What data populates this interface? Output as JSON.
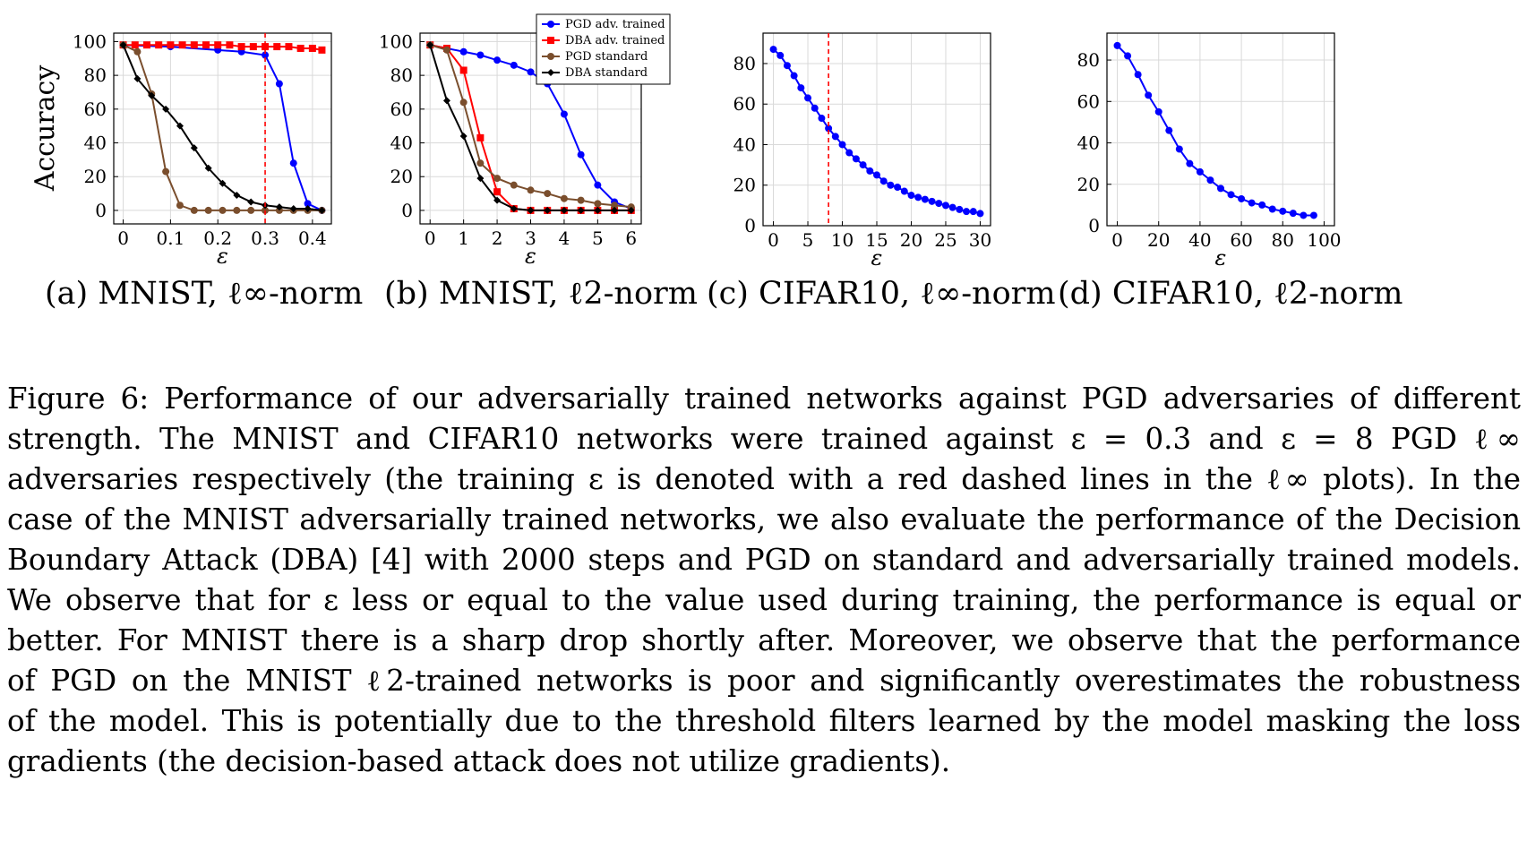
{
  "figure": {
    "panels": [
      {
        "caption": "(a) MNIST, ℓ∞-norm"
      },
      {
        "caption": "(b) MNIST, ℓ2-norm"
      },
      {
        "caption": "(c) CIFAR10, ℓ∞-norm"
      },
      {
        "caption": "(d) CIFAR10, ℓ2-norm"
      }
    ],
    "caption_lines": [
      "Figure 6: Performance of our adversarially trained networks against PGD adversaries of different",
      "strength. The MNIST and CIFAR10 networks were trained against ε = 0.3 and ε = 8 PGD ℓ∞",
      "adversaries respectively (the training ε is denoted with a red dashed lines in the ℓ∞ plots). In the",
      "case of the MNIST adversarially trained networks, we also evaluate the performance of the Decision",
      "Boundary Attack (DBA) [4] with 2000 steps and PGD on standard and adversarially trained models.",
      "We observe that for ε less or equal to the value used during training, the performance is equal or",
      "better. For MNIST there is a sharp drop shortly after. Moreover, we observe that the performance",
      "of PGD on the MNIST ℓ2-trained networks is poor and significantly overestimates the robustness",
      "of the model. This is potentially due to the threshold filters learned by the model masking the loss",
      "gradients (the decision-based attack does not utilize gradients)."
    ]
  },
  "colors": {
    "pgd_adv": "#0000ff",
    "dba_adv": "#ff0000",
    "pgd_std": "#7a4e2d",
    "dba_std": "#000000",
    "marker_line": "#ff0000"
  },
  "chart_data": [
    {
      "type": "line",
      "title": "(a) MNIST, ℓ∞-norm",
      "xlabel": "ε",
      "ylabel": "Accuracy",
      "xlim": [
        -0.02,
        0.44
      ],
      "ylim": [
        -8,
        105
      ],
      "xticks": [
        0,
        0.1,
        0.2,
        0.3,
        0.4
      ],
      "xtick_labels": [
        "0",
        "0.1",
        "0.2",
        "0.3",
        "0.4"
      ],
      "yticks": [
        0,
        20,
        40,
        60,
        80,
        100
      ],
      "ytick_labels": [
        "0",
        "20",
        "40",
        "60",
        "80",
        "100"
      ],
      "vline": 0.3,
      "series": [
        {
          "name": "PGD adv. trained",
          "color": "pgd_adv",
          "marker": "circle",
          "x": [
            0,
            0.1,
            0.2,
            0.25,
            0.3,
            0.33,
            0.36,
            0.39,
            0.42
          ],
          "y": [
            98,
            97,
            95,
            94,
            92,
            75,
            28,
            4,
            0
          ]
        },
        {
          "name": "DBA adv. trained",
          "color": "dba_adv",
          "marker": "square",
          "x": [
            0,
            0.025,
            0.05,
            0.075,
            0.1,
            0.125,
            0.15,
            0.175,
            0.2,
            0.225,
            0.25,
            0.275,
            0.3,
            0.325,
            0.35,
            0.375,
            0.4,
            0.42
          ],
          "y": [
            98,
            98,
            98,
            98,
            98,
            98,
            98,
            98,
            98,
            98,
            97,
            97,
            97,
            97,
            97,
            96,
            96,
            95
          ]
        },
        {
          "name": "PGD standard",
          "color": "pgd_std",
          "marker": "circle",
          "x": [
            0,
            0.03,
            0.06,
            0.09,
            0.12,
            0.15,
            0.18,
            0.21,
            0.24,
            0.27,
            0.3,
            0.33,
            0.36,
            0.39,
            0.42
          ],
          "y": [
            98,
            94,
            69,
            23,
            3,
            0,
            0,
            0,
            0,
            0,
            0,
            0,
            0,
            0,
            0
          ]
        },
        {
          "name": "DBA standard",
          "color": "dba_std",
          "marker": "diamond",
          "x": [
            0,
            0.03,
            0.06,
            0.09,
            0.12,
            0.15,
            0.18,
            0.21,
            0.24,
            0.27,
            0.3,
            0.33,
            0.36,
            0.39,
            0.42
          ],
          "y": [
            98,
            78,
            68,
            60,
            50,
            37,
            25,
            16,
            9,
            5,
            3,
            2,
            1,
            1,
            0
          ]
        }
      ]
    },
    {
      "type": "line",
      "title": "(b) MNIST, ℓ2-norm",
      "xlabel": "ε",
      "ylabel": "",
      "xlim": [
        -0.3,
        6.3
      ],
      "ylim": [
        -8,
        105
      ],
      "xticks": [
        0,
        1,
        2,
        3,
        4,
        5,
        6
      ],
      "xtick_labels": [
        "0",
        "1",
        "2",
        "3",
        "4",
        "5",
        "6"
      ],
      "yticks": [
        0,
        20,
        40,
        60,
        80,
        100
      ],
      "ytick_labels": [
        "0",
        "20",
        "40",
        "60",
        "80",
        "100"
      ],
      "legend": "top-right",
      "series": [
        {
          "name": "PGD adv. trained",
          "color": "pgd_adv",
          "marker": "circle",
          "x": [
            0,
            0.5,
            1,
            1.5,
            2,
            2.5,
            3,
            3.5,
            4,
            4.5,
            5,
            5.5,
            6
          ],
          "y": [
            98,
            96,
            94,
            92,
            89,
            86,
            82,
            75,
            57,
            33,
            15,
            5,
            1
          ]
        },
        {
          "name": "DBA adv. trained",
          "color": "dba_adv",
          "marker": "square",
          "x": [
            0,
            0.5,
            1,
            1.5,
            2,
            2.5,
            3,
            3.5,
            4,
            4.5,
            5,
            5.5,
            6
          ],
          "y": [
            98,
            96,
            83,
            43,
            11,
            1,
            0,
            0,
            0,
            0,
            0,
            0,
            0
          ]
        },
        {
          "name": "PGD standard",
          "color": "pgd_std",
          "marker": "circle",
          "x": [
            0,
            0.5,
            1,
            1.5,
            2,
            2.5,
            3,
            3.5,
            4,
            4.5,
            5,
            5.5,
            6
          ],
          "y": [
            98,
            95,
            64,
            28,
            19,
            15,
            12,
            10,
            7,
            6,
            4,
            3,
            2
          ]
        },
        {
          "name": "DBA standard",
          "color": "dba_std",
          "marker": "diamond",
          "x": [
            0,
            0.5,
            1,
            1.5,
            2,
            2.5,
            3,
            3.5,
            4,
            4.5,
            5,
            5.5,
            6
          ],
          "y": [
            98,
            65,
            44,
            19,
            6,
            1,
            0,
            0,
            0,
            0,
            0,
            0,
            0
          ]
        }
      ]
    },
    {
      "type": "line",
      "title": "(c) CIFAR10, ℓ∞-norm",
      "xlabel": "ε",
      "ylabel": "",
      "xlim": [
        -1.5,
        31.5
      ],
      "ylim": [
        0,
        95
      ],
      "xticks": [
        0,
        5,
        10,
        15,
        20,
        25,
        30
      ],
      "xtick_labels": [
        "0",
        "5",
        "10",
        "15",
        "20",
        "25",
        "30"
      ],
      "yticks": [
        0,
        20,
        40,
        60,
        80
      ],
      "ytick_labels": [
        "0",
        "20",
        "40",
        "60",
        "80"
      ],
      "vline": 8,
      "series": [
        {
          "name": "PGD adv. trained",
          "color": "pgd_adv",
          "marker": "circle",
          "x": [
            0,
            1,
            2,
            3,
            4,
            5,
            6,
            7,
            8,
            9,
            10,
            11,
            12,
            13,
            14,
            15,
            16,
            17,
            18,
            19,
            20,
            21,
            22,
            23,
            24,
            25,
            26,
            27,
            28,
            29,
            30
          ],
          "y": [
            87,
            84,
            79,
            74,
            68,
            63,
            58,
            53,
            48,
            44,
            40,
            36,
            33,
            30,
            27,
            25,
            22,
            20,
            19,
            17,
            15,
            14,
            13,
            12,
            11,
            10,
            9,
            8,
            7,
            7,
            6
          ]
        }
      ]
    },
    {
      "type": "line",
      "title": "(d) CIFAR10, ℓ2-norm",
      "xlabel": "ε",
      "ylabel": "",
      "xlim": [
        -5,
        105
      ],
      "ylim": [
        0,
        93
      ],
      "xticks": [
        0,
        20,
        40,
        60,
        80,
        100
      ],
      "xtick_labels": [
        "0",
        "20",
        "40",
        "60",
        "80",
        "100"
      ],
      "yticks": [
        0,
        20,
        40,
        60,
        80
      ],
      "ytick_labels": [
        "0",
        "20",
        "40",
        "60",
        "80"
      ],
      "series": [
        {
          "name": "PGD adv. trained",
          "color": "pgd_adv",
          "marker": "circle",
          "x": [
            0,
            5,
            10,
            15,
            20,
            25,
            30,
            35,
            40,
            45,
            50,
            55,
            60,
            65,
            70,
            75,
            80,
            85,
            90,
            95
          ],
          "y": [
            87,
            82,
            73,
            63,
            55,
            46,
            37,
            30,
            26,
            22,
            18,
            15,
            13,
            11,
            10,
            8,
            7,
            6,
            5,
            5
          ]
        }
      ]
    }
  ]
}
